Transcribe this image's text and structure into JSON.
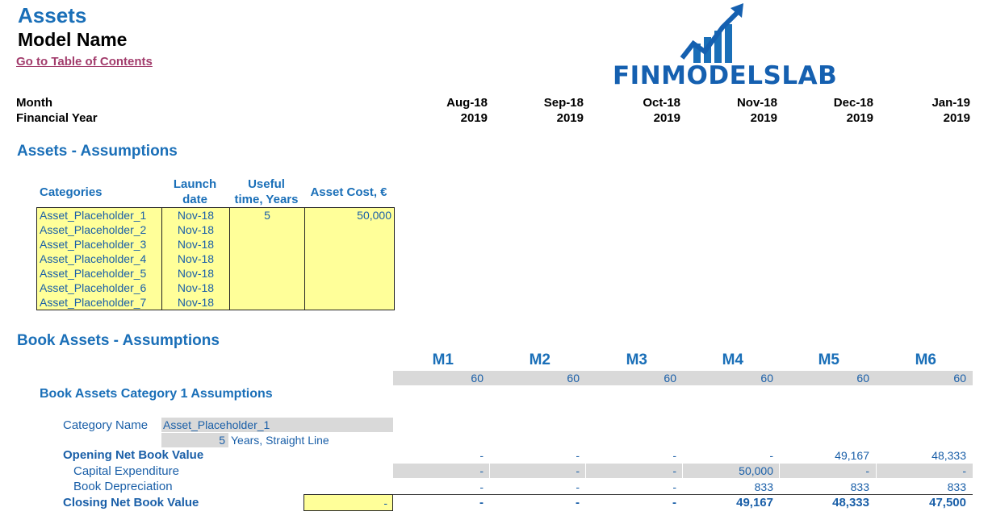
{
  "header": {
    "title": "Assets",
    "model_name": "Model Name",
    "toc_link": "Go to Table of Contents",
    "logo_text": "FINMODELSLAB"
  },
  "timeline": {
    "month_label": "Month",
    "year_label": "Financial Year",
    "months": [
      "Aug-18",
      "Sep-18",
      "Oct-18",
      "Nov-18",
      "Dec-18",
      "Jan-19"
    ],
    "years": [
      "2019",
      "2019",
      "2019",
      "2019",
      "2019",
      "2019"
    ]
  },
  "assets_assumptions": {
    "title": "Assets - Assumptions",
    "columns": {
      "category": "Categories",
      "launch_line1": "Launch",
      "launch_line2": "date",
      "useful_line1": "Useful",
      "useful_line2": "time, Years",
      "cost": "Asset Cost, €"
    },
    "rows": [
      {
        "name": "Asset_Placeholder_1",
        "launch": "Nov-18",
        "useful": "5",
        "cost": "50,000"
      },
      {
        "name": "Asset_Placeholder_2",
        "launch": "Nov-18",
        "useful": "",
        "cost": ""
      },
      {
        "name": "Asset_Placeholder_3",
        "launch": "Nov-18",
        "useful": "",
        "cost": ""
      },
      {
        "name": "Asset_Placeholder_4",
        "launch": "Nov-18",
        "useful": "",
        "cost": ""
      },
      {
        "name": "Asset_Placeholder_5",
        "launch": "Nov-18",
        "useful": "",
        "cost": ""
      },
      {
        "name": "Asset_Placeholder_6",
        "launch": "Nov-18",
        "useful": "",
        "cost": ""
      },
      {
        "name": "Asset_Placeholder_7",
        "launch": "Nov-18",
        "useful": "",
        "cost": ""
      }
    ]
  },
  "book_assets": {
    "title": "Book Assets - Assumptions",
    "periods": [
      "M1",
      "M2",
      "M3",
      "M4",
      "M5",
      "M6"
    ],
    "period_values": [
      "60",
      "60",
      "60",
      "60",
      "60",
      "60"
    ],
    "category_title": "Book Assets Category 1 Assumptions",
    "category_name_label": "Category Name",
    "category_name_value": "Asset_Placeholder_1",
    "years_value": "5",
    "years_label": "Years, Straight Line",
    "opening_label": "Opening Net Book Value",
    "opening_values": [
      "-",
      "-",
      "-",
      "-",
      "49,167",
      "48,333"
    ],
    "capex_label": "Capital Expenditure",
    "capex_values": [
      "-",
      "-",
      "-",
      "50,000",
      "-",
      "-"
    ],
    "depr_label": "Book Depreciation",
    "depr_values": [
      "-",
      "-",
      "-",
      "833",
      "833",
      "833"
    ],
    "closing_label": "Closing Net Book Value",
    "closing_input": "-",
    "closing_values": [
      "-",
      "-",
      "-",
      "49,167",
      "48,333",
      "47,500"
    ]
  },
  "colors": {
    "heading_blue": "#1a6fb8",
    "value_blue": "#1a5fa8",
    "input_yellow": "#ffff99",
    "band_grey": "#d9d9d9",
    "link": "#a23c6c"
  }
}
